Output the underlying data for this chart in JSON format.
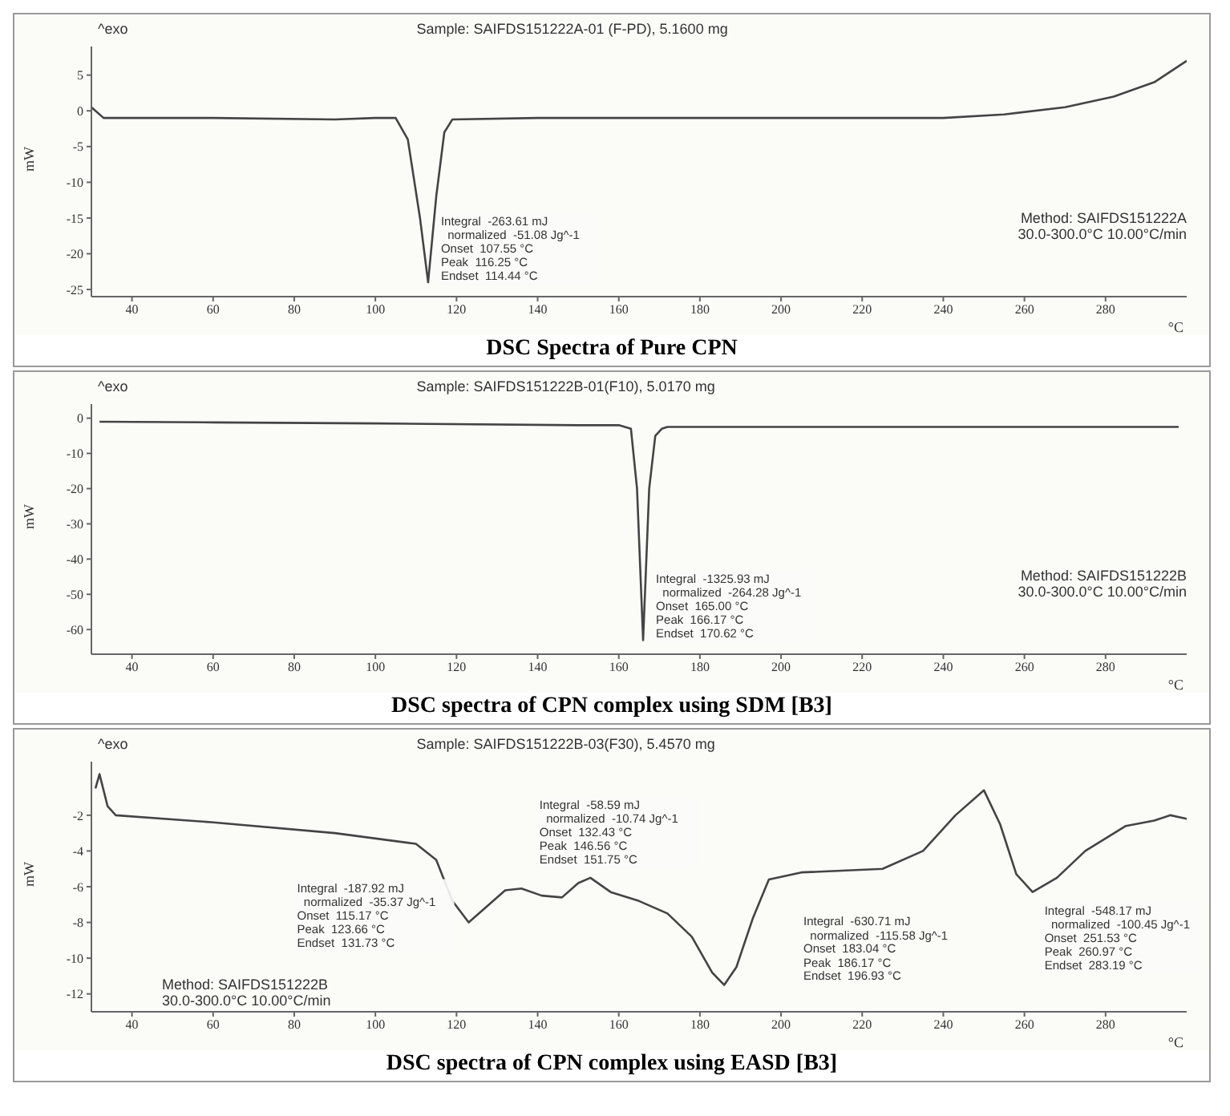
{
  "chart_data": [
    {
      "type": "line",
      "title": "DSC Spectra of Pure CPN",
      "ylabel": "mW",
      "xlabel": "°C",
      "xlim": [
        30,
        300
      ],
      "xticks": [
        40,
        60,
        80,
        100,
        120,
        140,
        160,
        180,
        200,
        220,
        240,
        260,
        280
      ],
      "ylim": [
        -26,
        9
      ],
      "yticks": [
        5,
        0,
        -5,
        -10,
        -15,
        -20,
        -25
      ],
      "grid": false,
      "marker": "none",
      "line_style": "solid",
      "annotations": [
        "^exo",
        "Sample: SAIFDS151222A-01 (F-PD), 5.1600 mg",
        "Method: SAIFDS151222A\n30.0-300.0°C 10.00°C/min",
        {
          "text": "Integral  -263.61 mJ\n  normalized  -51.08 Jg^-1\nOnset  107.55 °C\nPeak  116.25 °C\nEndset  114.44 °C",
          "x": 113,
          "y": -24
        }
      ],
      "series": [
        {
          "color": "#444444",
          "x": [
            30,
            33,
            60,
            90,
            100,
            105,
            108,
            111,
            113,
            115,
            117,
            119,
            140,
            180,
            220,
            240,
            255,
            270,
            282,
            292,
            300
          ],
          "values": [
            0.5,
            -1,
            -1,
            -1.2,
            -1,
            -1,
            -4,
            -15,
            -24,
            -12,
            -3,
            -1.2,
            -1,
            -1,
            -1,
            -1,
            -0.5,
            0.5,
            2,
            4,
            7
          ]
        }
      ]
    },
    {
      "type": "line",
      "title": "DSC spectra of CPN complex using SDM [B3]",
      "ylabel": "mW",
      "xlabel": "°C",
      "xlim": [
        30,
        300
      ],
      "xticks": [
        40,
        60,
        80,
        100,
        120,
        140,
        160,
        180,
        200,
        220,
        240,
        260,
        280
      ],
      "ylim": [
        -67,
        4
      ],
      "yticks": [
        0,
        -10,
        -20,
        -30,
        -40,
        -50,
        -60
      ],
      "grid": false,
      "marker": "none",
      "line_style": "solid",
      "annotations": [
        "^exo",
        "Sample: SAIFDS151222B-01(F10), 5.0170 mg",
        "Method: SAIFDS151222B\n30.0-300.0°C 10.00°C/min",
        {
          "text": "Integral  -1325.93 mJ\n  normalized  -264.28 Jg^-1\nOnset  165.00 °C\nPeak  166.17 °C\nEndset  170.62 °C",
          "x": 166,
          "y": -63
        }
      ],
      "series": [
        {
          "color": "#444444",
          "x": [
            32,
            60,
            100,
            150,
            160,
            163,
            164.5,
            166,
            167.5,
            169,
            170.6,
            172,
            200,
            250,
            298
          ],
          "values": [
            -1,
            -1.2,
            -1.5,
            -2,
            -2,
            -3,
            -20,
            -63,
            -20,
            -5,
            -3,
            -2.5,
            -2.5,
            -2.5,
            -2.5
          ]
        }
      ]
    },
    {
      "type": "line",
      "title": "DSC spectra of CPN complex using EASD [B3]",
      "ylabel": "mW",
      "xlabel": "°C",
      "xlim": [
        30,
        300
      ],
      "xticks": [
        40,
        60,
        80,
        100,
        120,
        140,
        160,
        180,
        200,
        220,
        240,
        260,
        280
      ],
      "ylim": [
        -13,
        1
      ],
      "yticks": [
        -2,
        -4,
        -6,
        -8,
        -10,
        -12
      ],
      "grid": false,
      "marker": "none",
      "line_style": "solid",
      "annotations": [
        "^exo",
        "Sample: SAIFDS151222B-03(F30), 5.4570 mg",
        "Method: SAIFDS151222B\n30.0-300.0°C 10.00°C/min",
        {
          "text": "Integral  -187.92 mJ\n  normalized  -35.37 Jg^-1\nOnset  115.17 °C\nPeak  123.66 °C\nEndset  131.73 °C",
          "x": 123,
          "y": -8
        },
        {
          "text": "Integral  -58.59 mJ\n  normalized  -10.74 Jg^-1\nOnset  132.43 °C\nPeak  146.56 °C\nEndset  151.75 °C",
          "x": 146,
          "y": -6.6
        },
        "Integral  -630.71 mJ\n  normalized  -115.58 Jg^-1\nOnset  183.04 °C\nPeak  186.17 °C\nEndset  196.93 °C",
        {
          "text": "Integral  -548.17 mJ\n  normalized  -100.45 Jg^-1\nOnset  251.53 °C\nPeak  260.97 °C\nEndset  283.19 °C",
          "x": 261,
          "y": -6.3
        }
      ],
      "series": [
        {
          "color": "#444444",
          "x": [
            31,
            32,
            34,
            36,
            60,
            90,
            110,
            115,
            119,
            123,
            127,
            132,
            136,
            141,
            146,
            150,
            153,
            158,
            165,
            172,
            178,
            183,
            186,
            189,
            193,
            197,
            205,
            225,
            235,
            243,
            250,
            254,
            258,
            262,
            268,
            275,
            285,
            292,
            296,
            300
          ],
          "values": [
            -0.5,
            0.3,
            -1.5,
            -2,
            -2.4,
            -3,
            -3.6,
            -4.5,
            -6.8,
            -8,
            -7.2,
            -6.2,
            -6.1,
            -6.5,
            -6.6,
            -5.8,
            -5.5,
            -6.3,
            -6.8,
            -7.5,
            -8.8,
            -10.8,
            -11.5,
            -10.5,
            -7.8,
            -5.6,
            -5.2,
            -5,
            -4,
            -2,
            -0.6,
            -2.5,
            -5.3,
            -6.3,
            -5.5,
            -4,
            -2.6,
            -2.3,
            -2,
            -2.2
          ]
        }
      ]
    }
  ]
}
